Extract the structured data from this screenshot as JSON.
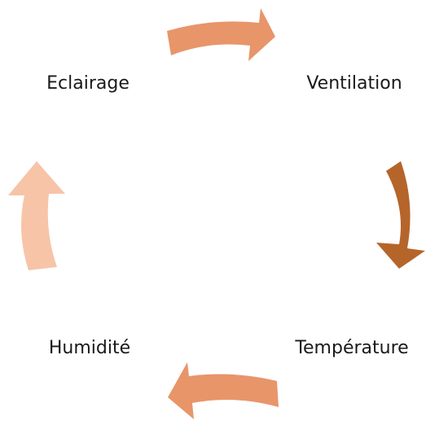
{
  "nodes": [
    {
      "label": "Eclairage"
    },
    {
      "label": "Ventilation"
    },
    {
      "label": "Température"
    },
    {
      "label": "Humidité"
    }
  ]
}
